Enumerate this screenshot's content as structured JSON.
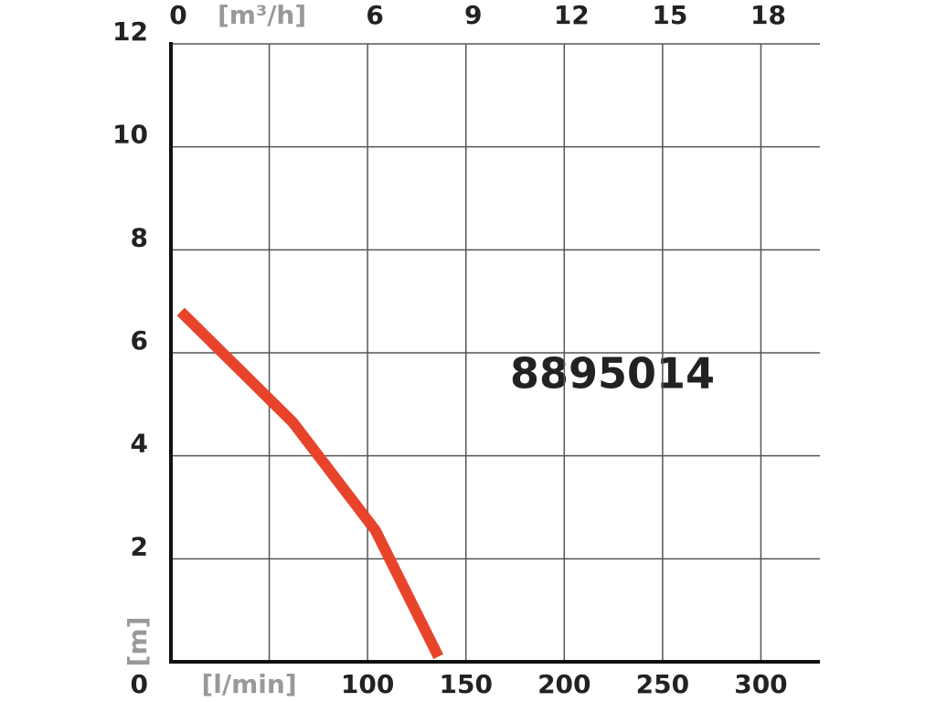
{
  "chart_data": {
    "type": "line",
    "annotation": "8895014",
    "ylabel": "[m]",
    "x": [
      5,
      62,
      104,
      136
    ],
    "series": [
      {
        "name": "8895014",
        "color": "#e8442c",
        "values": [
          6.8,
          4.65,
          2.55,
          0.1
        ]
      }
    ],
    "xlim": [
      0,
      330
    ],
    "xticks": [
      {
        "value": 50,
        "label": "[l/min]"
      },
      100,
      150,
      200,
      250,
      300
    ],
    "x2lim": [
      0,
      19.8
    ],
    "x2ticks": [
      0,
      {
        "value": 3,
        "label": "[m³/h]"
      },
      6,
      9,
      12,
      15,
      18
    ],
    "ylim": [
      0,
      12
    ],
    "yticks": [
      0,
      2,
      4,
      6,
      8,
      10,
      12
    ],
    "grid": true
  }
}
